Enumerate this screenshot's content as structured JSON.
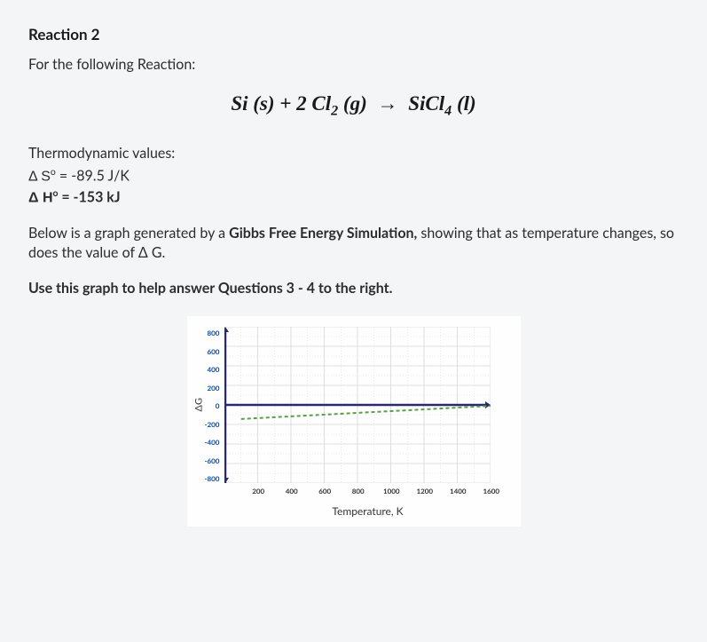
{
  "title": "Reaction 2",
  "intro": "For the following Reaction:",
  "equation": {
    "r1": "Si (s)",
    "plus": " + ",
    "coef2": "2 Cl",
    "sub2": "2",
    "state_g": " (g)",
    "arrow": "→",
    "gap": "  ",
    "p1": "SiCl",
    "sub4": "4",
    "state_l": " (l)"
  },
  "thermo": {
    "label": "Thermodynamic values:",
    "s_prefix": "Δ S",
    "s_sup": "o",
    "s_val": " = -89.5 J/K",
    "h_prefix": "Δ H",
    "h_sup": "o",
    "h_val": " = -153 kJ"
  },
  "desc": {
    "p1": "Below is a graph generated by a ",
    "b1": "Gibbs Free Energy Simulation,",
    "p2": " showing that as temperature changes, so does the value of Δ G."
  },
  "instruct": "Use this graph to help answer Questions 3 - 4 to the right.",
  "chart": {
    "type": "line",
    "ylabel": "ΔG",
    "xlabel": "Temperature, K",
    "yticks": [
      "800",
      "600",
      "400",
      "200",
      "0",
      "-200",
      "-400",
      "-600",
      "-800"
    ],
    "xticks": [
      "200",
      "400",
      "600",
      "800",
      "1000",
      "1200",
      "1400",
      "1600"
    ],
    "ylim": [
      -800,
      800
    ],
    "xlim": [
      0,
      1600
    ],
    "series": {
      "color": "#5a9e4a",
      "dash": "4,3",
      "width": 2,
      "points": [
        {
          "x": 100,
          "y": -144
        },
        {
          "x": 1600,
          "y": -10
        }
      ]
    },
    "grid_color": "#d8d8d8",
    "axis_color": "#2a2a6a",
    "background": "#fefefe"
  }
}
